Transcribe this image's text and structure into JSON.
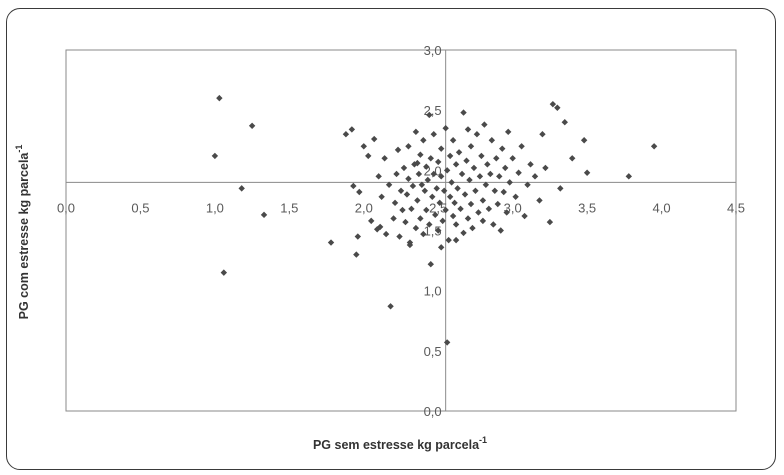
{
  "chart_data": {
    "type": "scatter",
    "xlabel": "PG sem estresse kg parcela",
    "ylabel": "PG com estresse kg parcela",
    "label_exponent": "-1",
    "xlim": [
      0,
      4.5
    ],
    "ylim": [
      0,
      3.0
    ],
    "x_ticks": [
      "0,0",
      "0,5",
      "1,0",
      "1,5",
      "2,0",
      "2,5",
      "3,0",
      "3,5",
      "4,0",
      "4,5"
    ],
    "y_ticks": [
      "0,0",
      "0,5",
      "1,0",
      "1,5",
      "2,0",
      "2,5",
      "3,0"
    ],
    "crosshair": {
      "x": 2.55,
      "y": 1.9
    },
    "grid": false,
    "marker_color": "#4a4a4a",
    "points": [
      [
        1.03,
        2.6
      ],
      [
        1.0,
        2.12
      ],
      [
        1.25,
        2.37
      ],
      [
        1.18,
        1.85
      ],
      [
        1.33,
        1.63
      ],
      [
        1.06,
        1.15
      ],
      [
        1.78,
        1.4
      ],
      [
        1.88,
        2.3
      ],
      [
        1.92,
        2.34
      ],
      [
        1.93,
        1.87
      ],
      [
        1.96,
        1.45
      ],
      [
        1.95,
        1.3
      ],
      [
        1.97,
        1.82
      ],
      [
        2.0,
        2.2
      ],
      [
        2.03,
        2.12
      ],
      [
        2.05,
        1.58
      ],
      [
        2.07,
        2.26
      ],
      [
        2.1,
        1.95
      ],
      [
        2.11,
        1.53
      ],
      [
        2.12,
        1.78
      ],
      [
        2.14,
        2.1
      ],
      [
        2.15,
        1.47
      ],
      [
        2.17,
        1.88
      ],
      [
        2.18,
        0.87
      ],
      [
        2.2,
        1.6
      ],
      [
        2.21,
        1.73
      ],
      [
        2.22,
        1.97
      ],
      [
        2.23,
        2.17
      ],
      [
        2.24,
        1.45
      ],
      [
        2.25,
        1.83
      ],
      [
        2.26,
        1.67
      ],
      [
        2.27,
        2.02
      ],
      [
        2.28,
        1.57
      ],
      [
        2.29,
        1.8
      ],
      [
        2.3,
        1.93
      ],
      [
        2.3,
        2.2
      ],
      [
        2.31,
        1.4
      ],
      [
        2.32,
        1.68
      ],
      [
        2.33,
        1.87
      ],
      [
        2.34,
        2.05
      ],
      [
        2.35,
        1.52
      ],
      [
        2.35,
        2.32
      ],
      [
        2.36,
        1.75
      ],
      [
        2.37,
        1.97
      ],
      [
        2.38,
        1.6
      ],
      [
        2.38,
        2.13
      ],
      [
        2.39,
        1.88
      ],
      [
        2.4,
        1.47
      ],
      [
        2.4,
        2.25
      ],
      [
        2.41,
        1.83
      ],
      [
        2.42,
        1.67
      ],
      [
        2.42,
        2.03
      ],
      [
        2.43,
        1.92
      ],
      [
        2.44,
        1.55
      ],
      [
        2.45,
        2.1
      ],
      [
        2.45,
        1.22
      ],
      [
        2.46,
        1.78
      ],
      [
        2.47,
        1.97
      ],
      [
        2.47,
        2.3
      ],
      [
        2.48,
        1.63
      ],
      [
        2.49,
        1.85
      ],
      [
        2.5,
        2.07
      ],
      [
        2.5,
        1.5
      ],
      [
        2.51,
        1.73
      ],
      [
        2.52,
        1.95
      ],
      [
        2.52,
        2.18
      ],
      [
        2.53,
        1.58
      ],
      [
        2.54,
        1.83
      ],
      [
        2.55,
        2.35
      ],
      [
        2.55,
        1.67
      ],
      [
        2.56,
        2.0
      ],
      [
        2.57,
        1.42
      ],
      [
        2.58,
        1.78
      ],
      [
        2.58,
        2.12
      ],
      [
        2.59,
        1.9
      ],
      [
        2.6,
        1.62
      ],
      [
        2.6,
        2.25
      ],
      [
        2.61,
        1.73
      ],
      [
        2.62,
        2.05
      ],
      [
        2.62,
        1.55
      ],
      [
        2.63,
        1.85
      ],
      [
        2.64,
        2.15
      ],
      [
        2.65,
        1.68
      ],
      [
        2.66,
        1.97
      ],
      [
        2.67,
        2.48
      ],
      [
        2.67,
        1.48
      ],
      [
        2.68,
        1.8
      ],
      [
        2.69,
        2.08
      ],
      [
        2.7,
        1.6
      ],
      [
        2.71,
        1.92
      ],
      [
        2.72,
        2.2
      ],
      [
        2.72,
        1.72
      ],
      [
        2.73,
        1.52
      ],
      [
        2.74,
        2.02
      ],
      [
        2.75,
        1.83
      ],
      [
        2.76,
        2.3
      ],
      [
        2.77,
        1.65
      ],
      [
        2.78,
        1.95
      ],
      [
        2.79,
        2.12
      ],
      [
        2.8,
        1.75
      ],
      [
        2.8,
        1.58
      ],
      [
        2.81,
        2.38
      ],
      [
        2.82,
        1.88
      ],
      [
        2.83,
        2.05
      ],
      [
        2.84,
        1.68
      ],
      [
        2.85,
        1.97
      ],
      [
        2.86,
        2.25
      ],
      [
        2.87,
        1.55
      ],
      [
        2.88,
        1.83
      ],
      [
        2.89,
        2.1
      ],
      [
        2.9,
        1.72
      ],
      [
        2.91,
        1.95
      ],
      [
        2.92,
        1.5
      ],
      [
        2.93,
        2.18
      ],
      [
        2.94,
        1.82
      ],
      [
        2.95,
        2.02
      ],
      [
        2.96,
        1.65
      ],
      [
        2.97,
        2.32
      ],
      [
        2.98,
        1.9
      ],
      [
        3.0,
        2.1
      ],
      [
        3.02,
        1.78
      ],
      [
        3.04,
        1.98
      ],
      [
        3.06,
        2.2
      ],
      [
        3.08,
        1.62
      ],
      [
        3.1,
        1.88
      ],
      [
        3.12,
        2.05
      ],
      [
        3.15,
        1.95
      ],
      [
        3.18,
        1.75
      ],
      [
        3.2,
        2.3
      ],
      [
        3.22,
        2.02
      ],
      [
        3.25,
        1.57
      ],
      [
        3.27,
        2.55
      ],
      [
        3.3,
        2.52
      ],
      [
        3.32,
        1.85
      ],
      [
        3.35,
        2.4
      ],
      [
        3.4,
        2.1
      ],
      [
        3.48,
        2.25
      ],
      [
        3.5,
        1.98
      ],
      [
        3.78,
        1.95
      ],
      [
        3.95,
        2.2
      ],
      [
        2.56,
        0.57
      ],
      [
        2.09,
        1.51
      ],
      [
        2.44,
        2.46
      ],
      [
        2.36,
        2.06
      ],
      [
        2.62,
        1.42
      ],
      [
        2.7,
        2.34
      ],
      [
        2.52,
        1.36
      ],
      [
        2.31,
        1.38
      ]
    ]
  }
}
